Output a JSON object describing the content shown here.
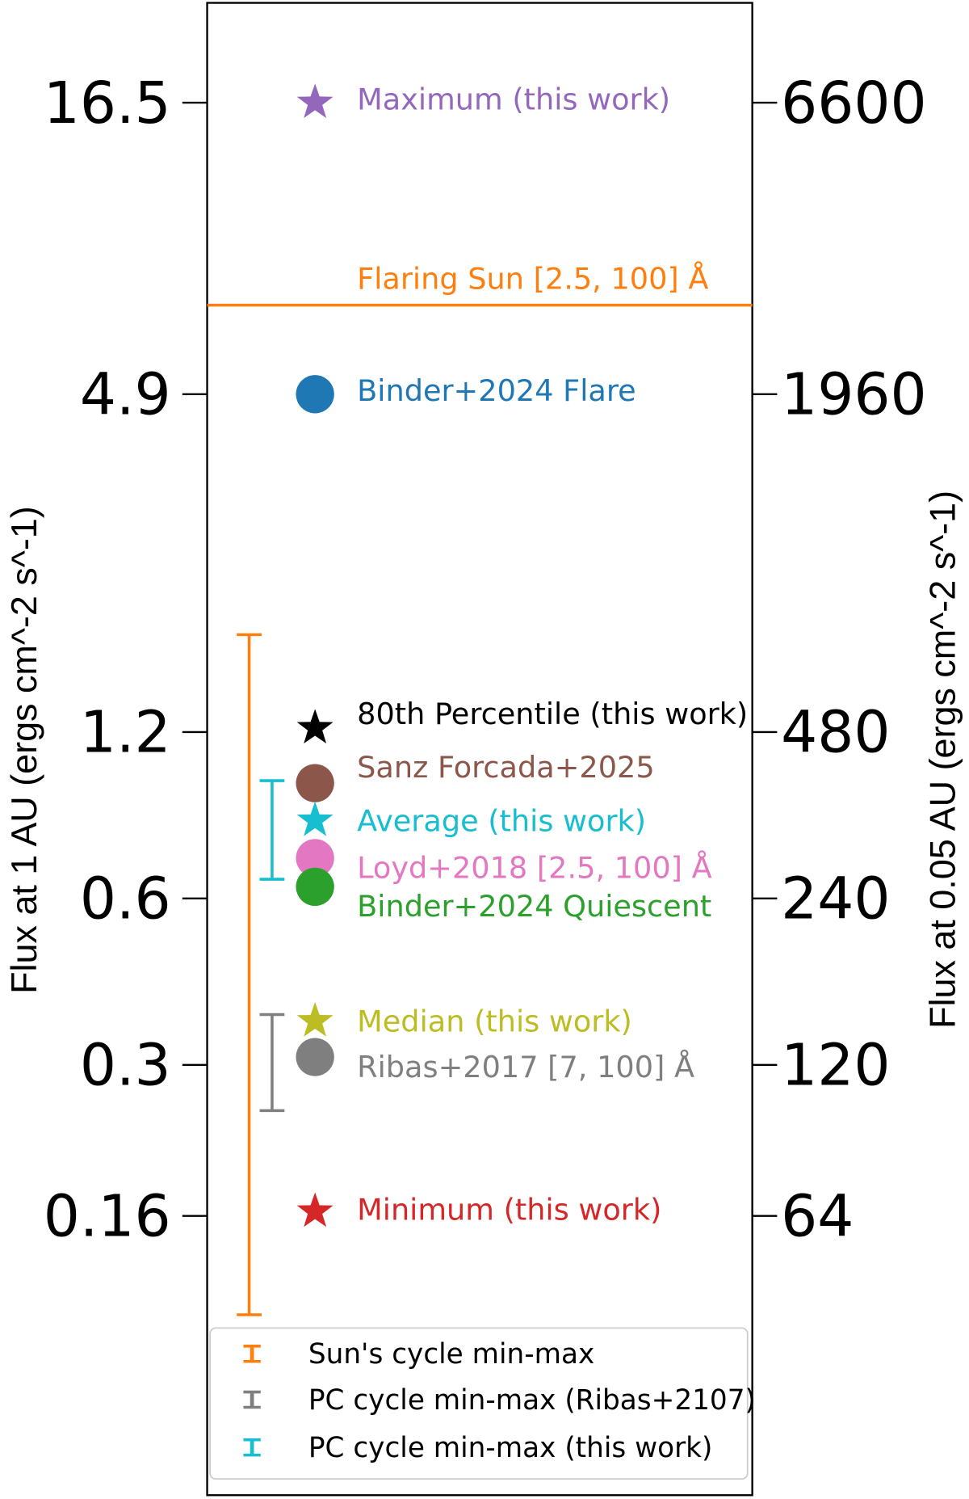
{
  "chart_data": {
    "type": "scatter",
    "scale": "log",
    "ylim": [
      0.05,
      25
    ],
    "ylabel_left": "Flux at 1 AU (ergs cm^-2 s^-1)",
    "ylabel_right": "Flux at 0.05 AU (ergs cm^-2 s^-1)",
    "left_ticks": [
      "16.5",
      "4.9",
      "1.2",
      "0.6",
      "0.3",
      "0.16"
    ],
    "left_tick_values": [
      16.5,
      4.9,
      1.2,
      0.6,
      0.3,
      0.16
    ],
    "right_ticks": [
      "6600",
      "1960",
      "480",
      "240",
      "120",
      "64"
    ],
    "grid": false,
    "points": [
      {
        "label": "Maximum (this work)",
        "value": 16.5,
        "marker": "star",
        "color": "#9467bd"
      },
      {
        "label": "Binder+2024 Flare",
        "value": 4.9,
        "marker": "circle",
        "color": "#1f77b4"
      },
      {
        "label": "80th Percentile (this work)",
        "value": 1.22,
        "marker": "star",
        "color": "#000000"
      },
      {
        "label": "Sanz Forcada+2025",
        "value": 0.97,
        "marker": "circle",
        "color": "#8c564b"
      },
      {
        "label": "Average (this work)",
        "value": 0.83,
        "marker": "star",
        "color": "#17becf"
      },
      {
        "label": "Loyd+2018 [2.5, 100] Å",
        "value": 0.71,
        "marker": "circle",
        "color": "#e377c2"
      },
      {
        "label": "Binder+2024 Quiescent",
        "value": 0.63,
        "marker": "circle",
        "color": "#2ca02c"
      },
      {
        "label": "Median (this work)",
        "value": 0.36,
        "marker": "star",
        "color": "#bcbd22"
      },
      {
        "label": "Ribas+2017 [7, 100] Å",
        "value": 0.31,
        "marker": "circle",
        "color": "#7f7f7f"
      },
      {
        "label": "Minimum (this work)",
        "value": 0.163,
        "marker": "star",
        "color": "#d62728"
      }
    ],
    "hline": {
      "label": "Flaring Sun [2.5, 100] Å",
      "value": 7.1,
      "color": "#ff7f0e"
    },
    "ranges": [
      {
        "name": "Sun's cycle min-max",
        "min": 0.106,
        "max": 1.8,
        "color": "#ff7f0e"
      },
      {
        "name": "PC cycle min-max (Ribas+2107)",
        "min": 0.248,
        "max": 0.37,
        "color": "#7f7f7f"
      },
      {
        "name": "PC cycle min-max (this work)",
        "min": 0.65,
        "max": 0.98,
        "color": "#17becf"
      }
    ],
    "legend_position": "bottom"
  }
}
